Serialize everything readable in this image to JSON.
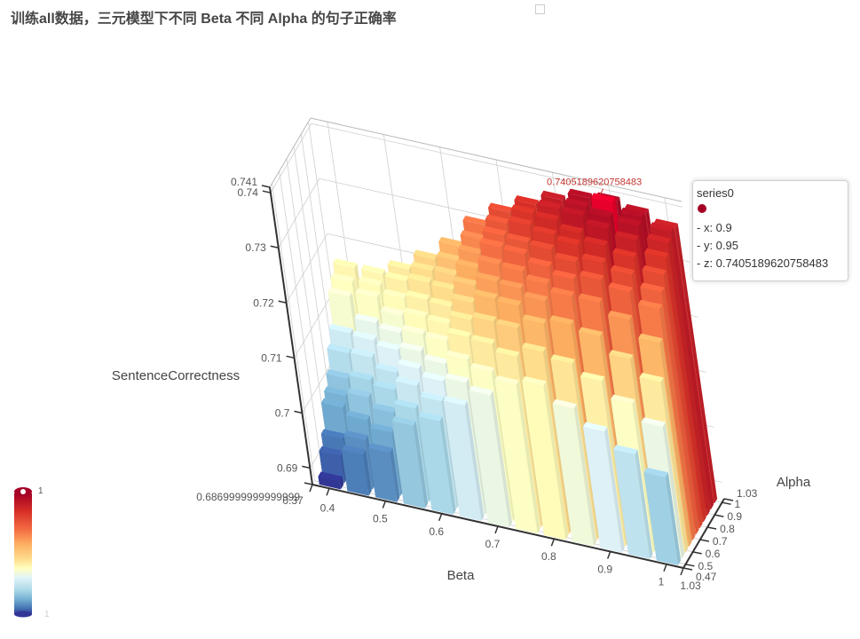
{
  "title": "训练all数据，三元模型下不同 Beta 不同 Alpha 的句子正确率",
  "chart_data": {
    "type": "bar3D",
    "xlabel": "Beta",
    "ylabel": "Alpha",
    "zlabel": "SentenceCorrectness",
    "x_ticks": [
      "0.37",
      "0.4",
      "0.5",
      "0.6",
      "0.7",
      "0.8",
      "0.9",
      "1",
      "1.03"
    ],
    "y_ticks": [
      "0.47",
      "0.5",
      "0.6",
      "0.7",
      "0.8",
      "0.9",
      "1",
      "1.03"
    ],
    "z_ticks": [
      "0.6869999999999999",
      "0.69",
      "0.7",
      "0.71",
      "0.72",
      "0.73",
      "0.74",
      "0.741"
    ],
    "xlim": [
      0.37,
      1.03
    ],
    "ylim": [
      0.47,
      1.03
    ],
    "zlim": [
      0.687,
      0.741
    ],
    "beta": [
      0.4,
      0.45,
      0.5,
      0.55,
      0.6,
      0.65,
      0.7,
      0.75,
      0.8,
      0.85,
      0.9,
      0.95,
      1.0
    ],
    "alpha": [
      0.5,
      0.55,
      0.6,
      0.65,
      0.7,
      0.75,
      0.8,
      0.85,
      0.9,
      0.95,
      1.0
    ],
    "values": [
      [
        0.6885,
        0.692,
        0.694,
        0.6985,
        0.6995,
        0.7015,
        0.705,
        0.7075,
        0.713,
        0.7145,
        0.716
      ],
      [
        0.6945,
        0.696,
        0.6985,
        0.7015,
        0.7035,
        0.7065,
        0.7085,
        0.7105,
        0.714,
        0.715,
        0.716
      ],
      [
        0.696,
        0.6985,
        0.701,
        0.704,
        0.706,
        0.709,
        0.711,
        0.713,
        0.715,
        0.717,
        0.718
      ],
      [
        0.702,
        0.704,
        0.707,
        0.709,
        0.711,
        0.713,
        0.715,
        0.717,
        0.719,
        0.72,
        0.721
      ],
      [
        0.704,
        0.7065,
        0.709,
        0.711,
        0.714,
        0.716,
        0.718,
        0.72,
        0.7215,
        0.723,
        0.7245
      ],
      [
        0.708,
        0.711,
        0.714,
        0.717,
        0.719,
        0.721,
        0.723,
        0.725,
        0.7265,
        0.728,
        0.7295
      ],
      [
        0.711,
        0.714,
        0.718,
        0.721,
        0.724,
        0.726,
        0.728,
        0.73,
        0.731,
        0.732,
        0.733
      ],
      [
        0.714,
        0.718,
        0.722,
        0.725,
        0.727,
        0.729,
        0.731,
        0.732,
        0.734,
        0.735,
        0.7355
      ],
      [
        0.715,
        0.72,
        0.724,
        0.727,
        0.729,
        0.731,
        0.733,
        0.7345,
        0.736,
        0.737,
        0.7375
      ],
      [
        0.712,
        0.719,
        0.725,
        0.729,
        0.731,
        0.733,
        0.735,
        0.736,
        0.738,
        0.7385,
        0.739
      ],
      [
        0.709,
        0.717,
        0.724,
        0.729,
        0.732,
        0.734,
        0.736,
        0.738,
        0.739,
        0.7405,
        0.7395
      ],
      [
        0.706,
        0.714,
        0.721,
        0.727,
        0.731,
        0.733,
        0.735,
        0.737,
        0.7385,
        0.739,
        0.7385
      ],
      [
        0.703,
        0.711,
        0.718,
        0.724,
        0.729,
        0.731,
        0.733,
        0.735,
        0.7365,
        0.7375,
        0.737
      ]
    ],
    "visual_map": {
      "min_label": "1",
      "max_label": "1",
      "colors": [
        "#313695",
        "#4575b4",
        "#74add1",
        "#abd9e9",
        "#e0f3f8",
        "#ffffbf",
        "#fee090",
        "#fdae61",
        "#f46d43",
        "#d73027",
        "#a50026"
      ]
    },
    "highlight": {
      "beta": 0.9,
      "alpha": 0.95,
      "label": "0.7405189620758483",
      "color": "#e8002c",
      "label_color": "#c23531"
    }
  },
  "tooltip": {
    "series": "series0",
    "x": "- x: 0.9",
    "y": "- y: 0.95",
    "z": "- z: 0.7405189620758483"
  }
}
